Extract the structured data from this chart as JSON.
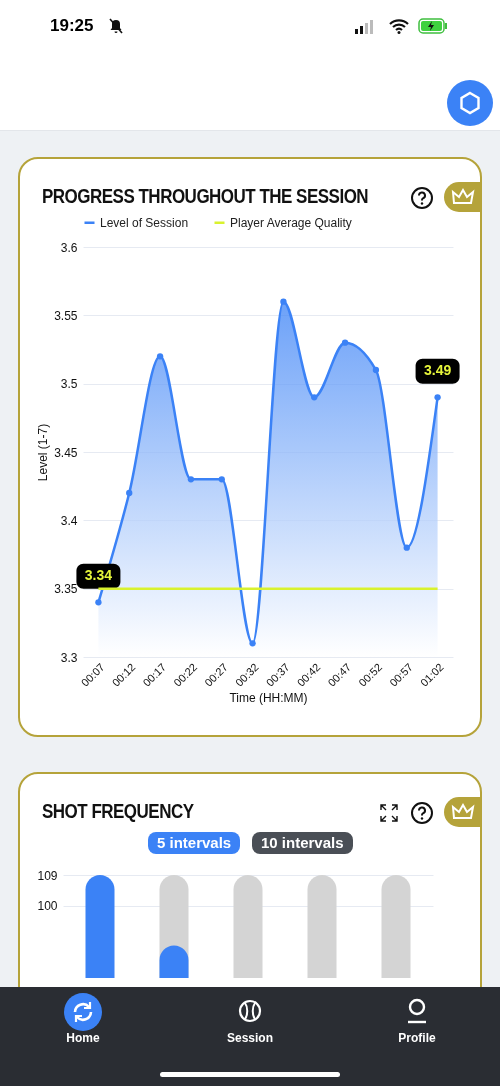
{
  "chart_data": [
    {
      "type": "line",
      "title": "PROGRESS THROUGHOUT THE SESSION",
      "xlabel": "Time (HH:MM)",
      "ylabel": "Level (1-7)",
      "categories": [
        "00:07",
        "00:12",
        "00:17",
        "00:22",
        "00:27",
        "00:32",
        "00:37",
        "00:42",
        "00:47",
        "00:52",
        "00:57",
        "01:02"
      ],
      "series": [
        {
          "name": "Level of Session",
          "type": "area",
          "color": "#3b82f6",
          "marker": "circle",
          "values": [
            3.34,
            3.42,
            3.52,
            3.43,
            3.43,
            3.31,
            3.56,
            3.49,
            3.53,
            3.51,
            3.38,
            3.49
          ],
          "value_labels": [
            "3.34",
            null,
            null,
            null,
            null,
            null,
            null,
            null,
            null,
            null,
            null,
            "3.49"
          ]
        },
        {
          "name": "Player Average Quality",
          "type": "line",
          "color": "#d9f22e",
          "values": [
            3.35,
            3.35,
            3.35,
            3.35,
            3.35,
            3.35,
            3.35,
            3.35,
            3.35,
            3.35,
            3.35,
            3.35
          ]
        }
      ],
      "ylim": [
        3.3,
        3.6
      ],
      "yticks": [
        3.3,
        3.35,
        3.4,
        3.45,
        3.5,
        3.55,
        3.6
      ],
      "grid": "y",
      "legend": "top"
    },
    {
      "type": "bar",
      "title": "SHOT FREQUENCY",
      "annotations": [
        "5 intervals",
        "10 intervals"
      ],
      "categories": [
        null,
        null,
        null,
        null,
        null
      ],
      "series": [
        {
          "color": "#d4d4d4",
          "values": [
            null,
            109,
            109,
            109,
            109
          ]
        },
        {
          "color": "#3b82f6",
          "values": [
            109,
            88.5,
            null,
            null,
            null
          ]
        }
      ],
      "ylim": [
        79,
        109
      ],
      "yticks": [
        100,
        109
      ],
      "grid": "y",
      "tick_labels": "y"
    },
    {
      "type": "other",
      "annotations": [
        "19:25",
        "Home",
        "Session",
        "Profile"
      ]
    }
  ]
}
